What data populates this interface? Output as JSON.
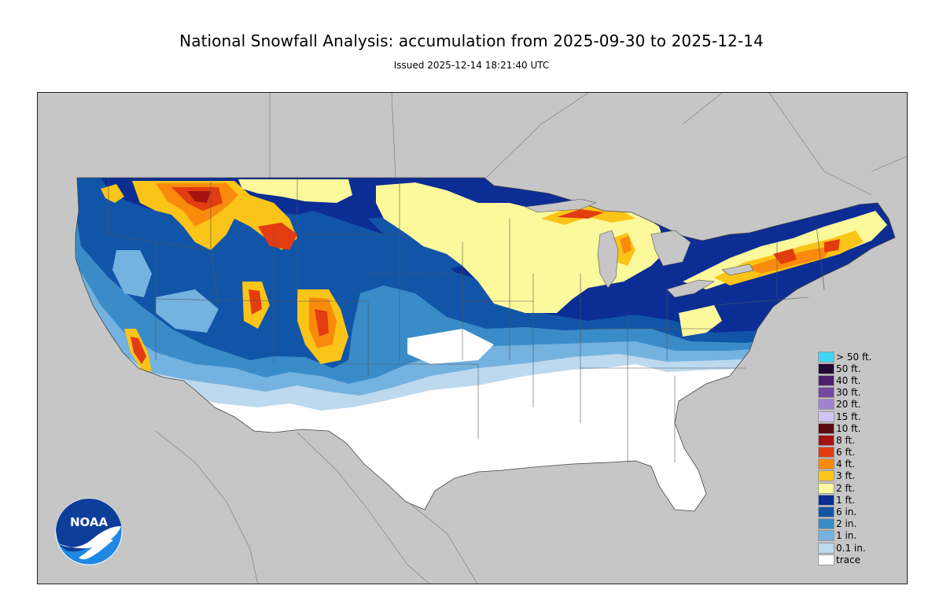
{
  "header": {
    "title": "National Snowfall Analysis: accumulation from 2025-09-30 to 2025-12-14",
    "issued": "Issued 2025-12-14 18:21:40 UTC"
  },
  "logo": {
    "text": "NOAA",
    "colors": {
      "sky": "#1e88e5",
      "deep": "#0d3f9a",
      "wave": "#ffffff"
    }
  },
  "map": {
    "background_color": "#c6c6c6",
    "land_color": "#ffffff",
    "colors": {
      "trace": "#ffffff",
      "0.1in": "#bcd9ee",
      "1in": "#74b2df",
      "2in": "#3a8cc8",
      "6in": "#1155a8",
      "1ft": "#0b2d94",
      "2ft": "#fcf89c",
      "3ft": "#fbc418",
      "4ft": "#f98a0c",
      "6ft": "#e23c10",
      "8ft": "#a61212"
    }
  },
  "legend": {
    "items": [
      {
        "label": "> 50 ft.",
        "color": "#3fd6f6"
      },
      {
        "label": "50 ft.",
        "color": "#200a33"
      },
      {
        "label": "40 ft.",
        "color": "#4b1f6e"
      },
      {
        "label": "30 ft.",
        "color": "#734aa0"
      },
      {
        "label": "20 ft.",
        "color": "#a082d2"
      },
      {
        "label": "15 ft.",
        "color": "#cfc5f5"
      },
      {
        "label": "10 ft.",
        "color": "#5a0c0c"
      },
      {
        "label": "8 ft.",
        "color": "#a61212"
      },
      {
        "label": "6 ft.",
        "color": "#e23c10"
      },
      {
        "label": "4 ft.",
        "color": "#f98a0c"
      },
      {
        "label": "3 ft.",
        "color": "#fbc418"
      },
      {
        "label": "2 ft.",
        "color": "#fcf89c"
      },
      {
        "label": "1 ft.",
        "color": "#0b2d94"
      },
      {
        "label": "6 in.",
        "color": "#1155a8"
      },
      {
        "label": "2 in.",
        "color": "#3a8cc8"
      },
      {
        "label": "1 in.",
        "color": "#74b2df"
      },
      {
        "label": "0.1 in.",
        "color": "#bcd9ee"
      },
      {
        "label": "trace",
        "color": "#ffffff"
      }
    ]
  }
}
